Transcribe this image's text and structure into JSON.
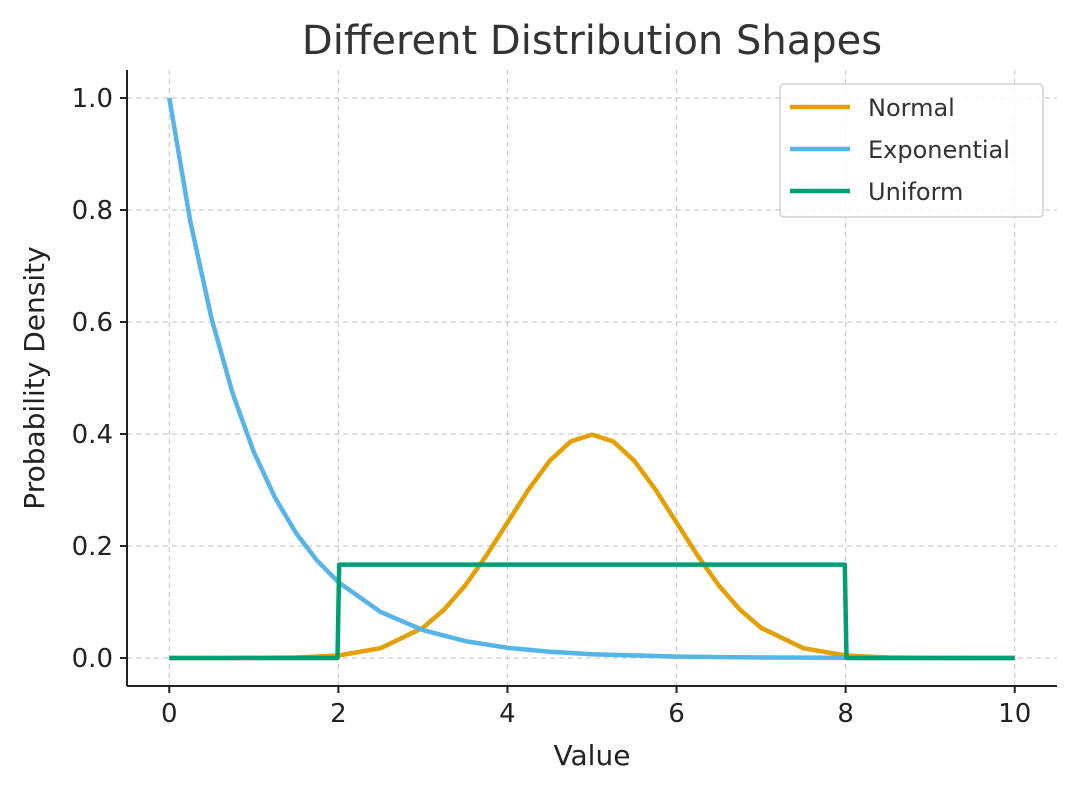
{
  "chart_data": {
    "type": "line",
    "title": "Different Distribution Shapes",
    "xlabel": "Value",
    "ylabel": "Probability Density",
    "xlim": [
      -0.5,
      10.5
    ],
    "ylim": [
      -0.05,
      1.05
    ],
    "xticks": [
      0,
      2,
      4,
      6,
      8,
      10
    ],
    "xtick_labels": [
      "0",
      "2",
      "4",
      "6",
      "8",
      "10"
    ],
    "yticks": [
      0.0,
      0.2,
      0.4,
      0.6,
      0.8,
      1.0
    ],
    "ytick_labels": [
      "0.0",
      "0.2",
      "0.4",
      "0.6",
      "0.8",
      "1.0"
    ],
    "grid": true,
    "legend_position": "top-right",
    "series": [
      {
        "name": "Normal",
        "color": "#E69F00",
        "x": [
          0,
          0.5,
          1,
          1.5,
          2,
          2.5,
          3,
          3.25,
          3.5,
          3.75,
          4,
          4.25,
          4.5,
          4.75,
          5,
          5.25,
          5.5,
          5.75,
          6,
          6.25,
          6.5,
          6.75,
          7,
          7.5,
          8,
          8.5,
          9,
          9.5,
          10
        ],
        "y": [
          0.0,
          0.0,
          0.0001,
          0.0009,
          0.0044,
          0.0175,
          0.054,
          0.0863,
          0.1295,
          0.1826,
          0.242,
          0.3011,
          0.3521,
          0.3867,
          0.3989,
          0.3867,
          0.3521,
          0.3011,
          0.242,
          0.1826,
          0.1295,
          0.0863,
          0.054,
          0.0175,
          0.0044,
          0.0009,
          0.0001,
          0.0,
          0.0
        ]
      },
      {
        "name": "Exponential",
        "color": "#56B4E9",
        "x": [
          0,
          0.25,
          0.5,
          0.75,
          1,
          1.25,
          1.5,
          1.75,
          2,
          2.5,
          3,
          3.5,
          4,
          4.5,
          5,
          6,
          7,
          8,
          9,
          10
        ],
        "y": [
          1.0,
          0.7788,
          0.6065,
          0.4724,
          0.3679,
          0.2865,
          0.2231,
          0.1738,
          0.1353,
          0.0821,
          0.0498,
          0.0302,
          0.0183,
          0.0111,
          0.0067,
          0.0025,
          0.0009,
          0.0003,
          0.0001,
          0.0
        ]
      },
      {
        "name": "Uniform",
        "color": "#009E73",
        "x": [
          0,
          1.99,
          2.01,
          7.99,
          8.01,
          10
        ],
        "y": [
          0.0,
          0.0,
          0.1667,
          0.1667,
          0.0,
          0.0
        ]
      }
    ]
  }
}
